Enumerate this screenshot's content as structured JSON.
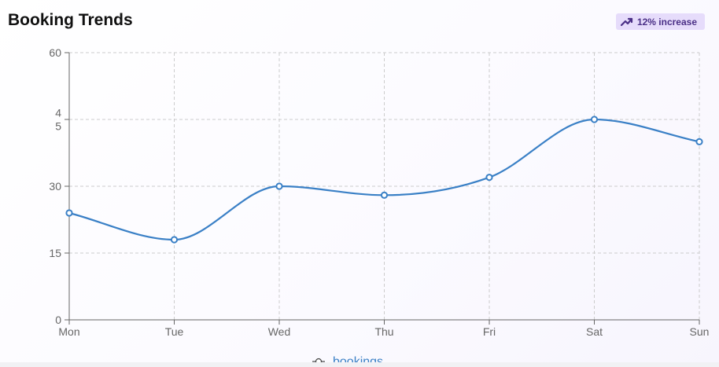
{
  "header": {
    "title": "Booking Trends",
    "badge_text": "12% increase",
    "badge_icon": "trending-up-icon"
  },
  "colors": {
    "line": "#3a80c6",
    "badge_bg": "#e6dcfb",
    "badge_text": "#4a2f86",
    "grid": "#cccccc"
  },
  "chart_data": {
    "type": "line",
    "title": "Booking Trends",
    "categories": [
      "Mon",
      "Tue",
      "Wed",
      "Thu",
      "Fri",
      "Sat",
      "Sun"
    ],
    "series": [
      {
        "name": "bookings",
        "values": [
          24,
          18,
          30,
          28,
          32,
          45,
          40
        ]
      }
    ],
    "ylim": [
      0,
      60
    ],
    "y_ticks": [
      0,
      15,
      30,
      45,
      60
    ],
    "y_tick_labels": [
      "0",
      "15",
      "30",
      "4\n5",
      "60"
    ],
    "xlabel": "",
    "ylabel": "",
    "grid": true,
    "legend": "bottom-center",
    "curve": "smooth"
  }
}
